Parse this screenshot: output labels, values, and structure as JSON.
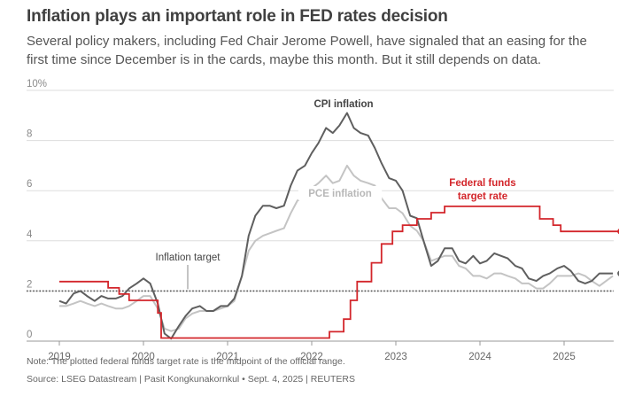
{
  "header": {
    "title": "Inflation plays an important role in FED rates decision",
    "subtitle": "Several policy makers, including Fed Chair Jerome Powell, have signaled that an easing for the first time since December is in the cards, maybe this month. But it still depends on data."
  },
  "footer": {
    "note": "Note: The plotted federal funds target rate is the midpoint of the official range.",
    "source": "Source: LSEG Datastream | Pasit Kongkunakornkul • Sept. 4, 2025 | REUTERS"
  },
  "colors": {
    "cpi": "#5f5f5f",
    "pce": "#c4c4c4",
    "fed": "#d3262b",
    "target": "#555555",
    "grid": "#dddddd"
  },
  "chart_data": {
    "type": "line",
    "title": "Inflation plays an important role in FED rates decision",
    "xlabel": "",
    "ylabel": "",
    "ylim": [
      0,
      10
    ],
    "xlim": [
      2018.97,
      2025.67
    ],
    "y_ticks": [
      {
        "value": 0,
        "label": "0"
      },
      {
        "value": 2,
        "label": "2"
      },
      {
        "value": 4,
        "label": "4"
      },
      {
        "value": 6,
        "label": "6"
      },
      {
        "value": 8,
        "label": "8"
      },
      {
        "value": 10,
        "label": "10%"
      }
    ],
    "x_ticks": [
      {
        "value": 2019,
        "label": "2019"
      },
      {
        "value": 2020,
        "label": "2020"
      },
      {
        "value": 2021,
        "label": "2021"
      },
      {
        "value": 2022,
        "label": "2022"
      },
      {
        "value": 2023,
        "label": "2023"
      },
      {
        "value": 2024,
        "label": "2024"
      },
      {
        "value": 2025,
        "label": "2025"
      }
    ],
    "inflation_target": {
      "value": 2,
      "label": "Inflation target"
    },
    "series": [
      {
        "name": "PCE inflation",
        "label": "PCE inflation",
        "x": [
          2019.0,
          2019.08,
          2019.17,
          2019.25,
          2019.33,
          2019.42,
          2019.5,
          2019.58,
          2019.67,
          2019.75,
          2019.83,
          2019.92,
          2020.0,
          2020.08,
          2020.17,
          2020.25,
          2020.33,
          2020.42,
          2020.5,
          2020.58,
          2020.67,
          2020.75,
          2020.83,
          2020.92,
          2021.0,
          2021.08,
          2021.17,
          2021.25,
          2021.33,
          2021.42,
          2021.5,
          2021.58,
          2021.67,
          2021.75,
          2021.83,
          2021.92,
          2022.0,
          2022.08,
          2022.17,
          2022.25,
          2022.33,
          2022.42,
          2022.5,
          2022.58,
          2022.67,
          2022.75,
          2022.83,
          2022.92,
          2023.0,
          2023.08,
          2023.17,
          2023.25,
          2023.33,
          2023.42,
          2023.5,
          2023.58,
          2023.67,
          2023.75,
          2023.83,
          2023.92,
          2024.0,
          2024.08,
          2024.17,
          2024.25,
          2024.33,
          2024.42,
          2024.5,
          2024.58,
          2024.67,
          2024.75,
          2024.83,
          2024.92,
          2025.0,
          2025.08,
          2025.17,
          2025.25,
          2025.33,
          2025.42,
          2025.5,
          2025.58
        ],
        "values": [
          1.4,
          1.4,
          1.5,
          1.6,
          1.5,
          1.4,
          1.5,
          1.4,
          1.3,
          1.3,
          1.4,
          1.6,
          1.8,
          1.8,
          1.3,
          0.5,
          0.4,
          0.5,
          0.9,
          1.1,
          1.2,
          1.2,
          1.2,
          1.3,
          1.4,
          1.6,
          2.6,
          3.6,
          4.0,
          4.2,
          4.3,
          4.4,
          4.5,
          5.1,
          5.6,
          5.8,
          6.1,
          6.3,
          6.6,
          6.3,
          6.4,
          7.0,
          6.6,
          6.4,
          6.3,
          6.2,
          5.7,
          5.3,
          5.3,
          5.1,
          4.6,
          4.4,
          4.0,
          3.2,
          3.3,
          3.4,
          3.4,
          3.0,
          2.9,
          2.6,
          2.6,
          2.5,
          2.7,
          2.7,
          2.6,
          2.5,
          2.3,
          2.3,
          2.1,
          2.1,
          2.3,
          2.6,
          2.6,
          2.6,
          2.7,
          2.6,
          2.4,
          2.2,
          2.4,
          2.6
        ]
      },
      {
        "name": "CPI inflation",
        "label": "CPI inflation",
        "x": [
          2019.0,
          2019.08,
          2019.17,
          2019.25,
          2019.33,
          2019.42,
          2019.5,
          2019.58,
          2019.67,
          2019.75,
          2019.83,
          2019.92,
          2020.0,
          2020.08,
          2020.17,
          2020.25,
          2020.33,
          2020.42,
          2020.5,
          2020.58,
          2020.67,
          2020.75,
          2020.83,
          2020.92,
          2021.0,
          2021.08,
          2021.17,
          2021.25,
          2021.33,
          2021.42,
          2021.5,
          2021.58,
          2021.67,
          2021.75,
          2021.83,
          2021.92,
          2022.0,
          2022.08,
          2022.17,
          2022.25,
          2022.33,
          2022.42,
          2022.5,
          2022.58,
          2022.67,
          2022.75,
          2022.83,
          2022.92,
          2023.0,
          2023.08,
          2023.17,
          2023.25,
          2023.33,
          2023.42,
          2023.5,
          2023.58,
          2023.67,
          2023.75,
          2023.83,
          2023.92,
          2024.0,
          2024.08,
          2024.17,
          2024.25,
          2024.33,
          2024.42,
          2024.5,
          2024.58,
          2024.67,
          2024.75,
          2024.83,
          2024.92,
          2025.0,
          2025.08,
          2025.17,
          2025.25,
          2025.33,
          2025.42,
          2025.5,
          2025.58
        ],
        "values": [
          1.6,
          1.5,
          1.9,
          2.0,
          1.8,
          1.6,
          1.8,
          1.7,
          1.7,
          1.8,
          2.1,
          2.3,
          2.5,
          2.3,
          1.5,
          0.3,
          0.1,
          0.6,
          1.0,
          1.3,
          1.4,
          1.2,
          1.2,
          1.4,
          1.4,
          1.7,
          2.6,
          4.2,
          5.0,
          5.4,
          5.4,
          5.3,
          5.4,
          6.2,
          6.8,
          7.0,
          7.5,
          7.9,
          8.5,
          8.3,
          8.6,
          9.1,
          8.5,
          8.3,
          8.2,
          7.7,
          7.1,
          6.5,
          6.4,
          6.0,
          5.0,
          4.9,
          4.0,
          3.0,
          3.2,
          3.7,
          3.7,
          3.2,
          3.1,
          3.4,
          3.1,
          3.2,
          3.5,
          3.4,
          3.3,
          3.0,
          2.9,
          2.5,
          2.4,
          2.6,
          2.7,
          2.9,
          3.0,
          2.8,
          2.4,
          2.3,
          2.4,
          2.7,
          2.7,
          2.7
        ]
      },
      {
        "name": "Federal funds target rate",
        "label": "Federal funds\ntarget rate",
        "step": true,
        "x": [
          2019.0,
          2019.58,
          2019.71,
          2019.83,
          2020.17,
          2020.21,
          2022.21,
          2022.38,
          2022.46,
          2022.54,
          2022.71,
          2022.83,
          2022.96,
          2023.08,
          2023.25,
          2023.42,
          2023.58,
          2024.71,
          2024.87,
          2024.96,
          2025.58
        ],
        "values": [
          2.375,
          2.125,
          1.875,
          1.625,
          1.125,
          0.125,
          0.375,
          0.875,
          1.625,
          2.375,
          3.125,
          3.875,
          4.375,
          4.625,
          4.875,
          5.125,
          5.375,
          4.875,
          4.625,
          4.375,
          4.375
        ]
      }
    ]
  }
}
